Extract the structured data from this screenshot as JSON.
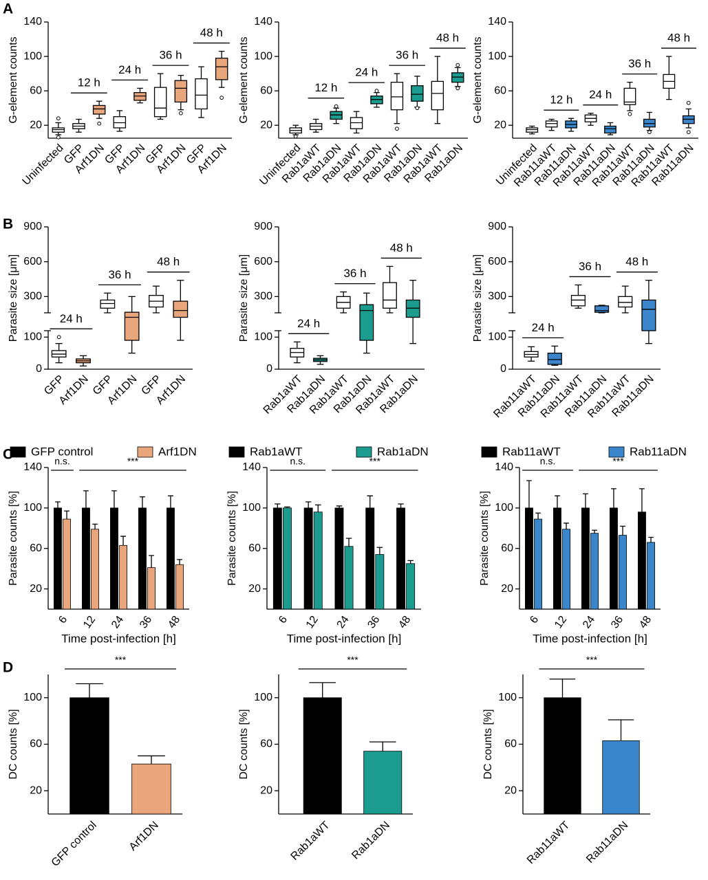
{
  "panels": [
    "A",
    "B",
    "C",
    "D"
  ],
  "chart_data": [
    {
      "type": "box",
      "ylabel": "G-element counts",
      "ylim": [
        5,
        140
      ],
      "yticks": [
        20,
        60,
        100,
        140
      ],
      "groups": [
        {
          "items": [
            {
              "name": "Uninfected",
              "color": "#ffffff",
              "min": 9,
              "q1": 12,
              "median": 15,
              "q3": 17,
              "max": 23,
              "outliers": [
                28,
                6
              ]
            }
          ]
        },
        {
          "label": "12 h",
          "items": [
            {
              "name": "GFP",
              "color": "#ffffff",
              "min": 12,
              "q1": 16,
              "median": 19,
              "q3": 22,
              "max": 27
            },
            {
              "name": "Arf1DN",
              "color": "#E9A57C",
              "min": 28,
              "q1": 33,
              "median": 39,
              "q3": 43,
              "max": 48,
              "outliers": [
                22
              ]
            }
          ]
        },
        {
          "label": "24 h",
          "items": [
            {
              "name": "GFP",
              "color": "#ffffff",
              "min": 13,
              "q1": 17,
              "median": 23,
              "q3": 30,
              "max": 37
            },
            {
              "name": "Arf1DN",
              "color": "#E9A57C",
              "min": 46,
              "q1": 49,
              "median": 54,
              "q3": 58,
              "max": 63
            }
          ]
        },
        {
          "label": "36 h",
          "items": [
            {
              "name": "GFP",
              "color": "#ffffff",
              "min": 27,
              "q1": 30,
              "median": 40,
              "q3": 64,
              "max": 80
            },
            {
              "name": "Arf1DN",
              "color": "#E9A57C",
              "min": 38,
              "q1": 47,
              "median": 63,
              "q3": 72,
              "max": 78,
              "outliers": [
                34
              ]
            }
          ]
        },
        {
          "label": "48 h",
          "items": [
            {
              "name": "GFP",
              "color": "#ffffff",
              "min": 29,
              "q1": 39,
              "median": 55,
              "q3": 74,
              "max": 88
            },
            {
              "name": "Arf1DN",
              "color": "#E9A57C",
              "min": 64,
              "q1": 73,
              "median": 88,
              "q3": 98,
              "max": 106,
              "outliers": [
                52
              ]
            }
          ]
        }
      ]
    },
    {
      "type": "box",
      "ylabel": "G-element counts",
      "ylim": [
        5,
        140
      ],
      "yticks": [
        20,
        60,
        100,
        140
      ],
      "groups": [
        {
          "items": [
            {
              "name": "Uninfected",
              "color": "#ffffff",
              "min": 9,
              "q1": 11,
              "median": 14,
              "q3": 17,
              "max": 20,
              "outliers": [
                7
              ]
            }
          ]
        },
        {
          "label": "12 h",
          "items": [
            {
              "name": "Rab1aWT",
              "color": "#ffffff",
              "min": 12,
              "q1": 15,
              "median": 19,
              "q3": 22,
              "max": 27
            },
            {
              "name": "Rab1aDN",
              "color": "#1B9C8E",
              "min": 22,
              "q1": 27,
              "median": 32,
              "q3": 36,
              "max": 40,
              "outliers": [
                42
              ]
            }
          ]
        },
        {
          "label": "24 h",
          "items": [
            {
              "name": "Rab1aWT",
              "color": "#ffffff",
              "min": 11,
              "q1": 16,
              "median": 23,
              "q3": 29,
              "max": 36
            },
            {
              "name": "Rab1aDN",
              "color": "#1B9C8E",
              "min": 41,
              "q1": 45,
              "median": 50,
              "q3": 54,
              "max": 58,
              "outliers": [
                60
              ]
            }
          ]
        },
        {
          "label": "36 h",
          "items": [
            {
              "name": "Rab1aWT",
              "color": "#ffffff",
              "min": 22,
              "q1": 38,
              "median": 53,
              "q3": 70,
              "max": 80,
              "outliers": [
                16
              ]
            },
            {
              "name": "Rab1aDN",
              "color": "#1B9C8E",
              "min": 41,
              "q1": 48,
              "median": 56,
              "q3": 66,
              "max": 77,
              "outliers": [
                40
              ]
            }
          ]
        },
        {
          "label": "48 h",
          "items": [
            {
              "name": "Rab1aWT",
              "color": "#ffffff",
              "min": 22,
              "q1": 38,
              "median": 57,
              "q3": 71,
              "max": 100
            },
            {
              "name": "Rab1aDN",
              "color": "#1B9C8E",
              "min": 65,
              "q1": 70,
              "median": 76,
              "q3": 81,
              "max": 87,
              "outliers": [
                63,
                90
              ]
            }
          ]
        }
      ]
    },
    {
      "type": "box",
      "ylabel": "G-element counts",
      "ylim": [
        5,
        140
      ],
      "yticks": [
        20,
        60,
        100,
        140
      ],
      "groups": [
        {
          "items": [
            {
              "name": "Uninfected",
              "color": "#ffffff",
              "min": 10,
              "q1": 12,
              "median": 15,
              "q3": 17,
              "max": 19
            }
          ]
        },
        {
          "label": "12 h",
          "items": [
            {
              "name": "Rab11aWT",
              "color": "#ffffff",
              "min": 14,
              "q1": 18,
              "median": 22,
              "q3": 25,
              "max": 27
            },
            {
              "name": "Rab11aDN",
              "color": "#3B86CB",
              "min": 13,
              "q1": 17,
              "median": 21,
              "q3": 25,
              "max": 28
            }
          ]
        },
        {
          "label": "24 h",
          "items": [
            {
              "name": "Rab11aWT",
              "color": "#ffffff",
              "min": 20,
              "q1": 24,
              "median": 28,
              "q3": 32,
              "max": 34
            },
            {
              "name": "Rab11aDN",
              "color": "#3B86CB",
              "min": 9,
              "q1": 11,
              "median": 16,
              "q3": 19,
              "max": 23
            }
          ]
        },
        {
          "label": "36 h",
          "items": [
            {
              "name": "Rab11aWT",
              "color": "#ffffff",
              "min": 37,
              "q1": 44,
              "median": 47,
              "q3": 63,
              "max": 70,
              "outliers": [
                33
              ]
            },
            {
              "name": "Rab11aDN",
              "color": "#3B86CB",
              "min": 14,
              "q1": 18,
              "median": 22,
              "q3": 27,
              "max": 35,
              "outliers": [
                12
              ]
            }
          ]
        },
        {
          "label": "48 h",
          "items": [
            {
              "name": "Rab11aWT",
              "color": "#ffffff",
              "min": 50,
              "q1": 63,
              "median": 71,
              "q3": 79,
              "max": 100
            },
            {
              "name": "Rab11aDN",
              "color": "#3B86CB",
              "min": 17,
              "q1": 22,
              "median": 27,
              "q3": 31,
              "max": 39,
              "outliers": [
                12,
                46
              ]
            }
          ]
        }
      ]
    },
    {
      "type": "box",
      "ylabel": "Parasite size [μm]",
      "ylim": [
        0,
        900
      ],
      "ybreak": [
        120,
        160
      ],
      "yticks": [
        0,
        100,
        300,
        600,
        900
      ],
      "groups": [
        {
          "label": "24 h",
          "items": [
            {
              "name": "GFP",
              "color": "#ffffff",
              "min": 20,
              "q1": 38,
              "median": 47,
              "q3": 58,
              "max": 80,
              "outliers": [
                100
              ]
            },
            {
              "name": "Arf1DN",
              "color": "#E9A57C",
              "min": 10,
              "q1": 20,
              "median": 26,
              "q3": 32,
              "max": 42
            }
          ]
        },
        {
          "label": "36 h",
          "items": [
            {
              "name": "GFP",
              "color": "#ffffff",
              "min": 160,
              "q1": 200,
              "median": 240,
              "q3": 270,
              "max": 330
            },
            {
              "name": "Arf1DN",
              "color": "#E9A57C",
              "min": 50,
              "q1": 90,
              "median": 150,
              "q3": 165,
              "max": 300
            }
          ]
        },
        {
          "label": "48 h",
          "items": [
            {
              "name": "GFP",
              "color": "#ffffff",
              "min": 160,
              "q1": 210,
              "median": 260,
              "q3": 310,
              "max": 390
            },
            {
              "name": "Arf1DN",
              "color": "#E9A57C",
              "min": 90,
              "q1": 150,
              "median": 180,
              "q3": 260,
              "max": 440
            }
          ]
        }
      ]
    },
    {
      "type": "box",
      "ylabel": "Parasite size [μm]",
      "ylim": [
        0,
        900
      ],
      "ybreak": [
        120,
        160
      ],
      "yticks": [
        0,
        100,
        300,
        600,
        900
      ],
      "groups": [
        {
          "label": "24 h",
          "items": [
            {
              "name": "Rab1aWT",
              "color": "#ffffff",
              "min": 20,
              "q1": 38,
              "median": 52,
              "q3": 65,
              "max": 85
            },
            {
              "name": "Rab1aDN",
              "color": "#1B9C8E",
              "min": 15,
              "q1": 24,
              "median": 29,
              "q3": 34,
              "max": 42
            }
          ]
        },
        {
          "label": "36 h",
          "items": [
            {
              "name": "Rab1aWT",
              "color": "#ffffff",
              "min": 160,
              "q1": 200,
              "median": 250,
              "q3": 300,
              "max": 340
            },
            {
              "name": "Rab1aDN",
              "color": "#1B9C8E",
              "min": 50,
              "q1": 90,
              "median": 180,
              "q3": 230,
              "max": 330
            }
          ]
        },
        {
          "label": "48 h",
          "items": [
            {
              "name": "Rab1aWT",
              "color": "#ffffff",
              "min": 160,
              "q1": 200,
              "median": 270,
              "q3": 420,
              "max": 560
            },
            {
              "name": "Rab1aDN",
              "color": "#1B9C8E",
              "min": 80,
              "q1": 150,
              "median": 200,
              "q3": 270,
              "max": 440
            }
          ]
        }
      ]
    },
    {
      "type": "box",
      "ylabel": "Parasite size [μm]",
      "ylim": [
        0,
        900
      ],
      "ybreak": [
        120,
        160
      ],
      "yticks": [
        0,
        100,
        300,
        600,
        900
      ],
      "groups": [
        {
          "label": "24 h",
          "items": [
            {
              "name": "Rab11aWT",
              "color": "#ffffff",
              "min": 25,
              "q1": 38,
              "median": 46,
              "q3": 55,
              "max": 70
            },
            {
              "name": "Rab11aDN",
              "color": "#3B86CB",
              "min": 12,
              "q1": 15,
              "median": 30,
              "q3": 50,
              "max": 72
            }
          ]
        },
        {
          "label": "36 h",
          "items": [
            {
              "name": "Rab11aWT",
              "color": "#ffffff",
              "min": 200,
              "q1": 220,
              "median": 270,
              "q3": 310,
              "max": 400
            },
            {
              "name": "Rab11aDN",
              "color": "#3B86CB",
              "min": 160,
              "q1": 165,
              "median": 180,
              "q3": 220,
              "max": 225
            }
          ]
        },
        {
          "label": "48 h",
          "items": [
            {
              "name": "Rab11aWT",
              "color": "#ffffff",
              "min": 160,
              "q1": 210,
              "median": 250,
              "q3": 300,
              "max": 390
            },
            {
              "name": "Rab11aDN",
              "color": "#3B86CB",
              "min": 80,
              "q1": 120,
              "median": 190,
              "q3": 270,
              "max": 440
            }
          ]
        }
      ]
    },
    {
      "type": "bar",
      "ylabel": "Parasite counts [%]",
      "xlabel": "Time post-infection [h]",
      "ylim": [
        0,
        140
      ],
      "yticks": [
        20,
        60,
        100,
        140
      ],
      "categories": [
        6,
        12,
        24,
        36,
        48
      ],
      "series": [
        {
          "name": "GFP control",
          "color": "#000000",
          "values": [
            100,
            100,
            100,
            100,
            100
          ],
          "errors": [
            6,
            17,
            17,
            11,
            12
          ]
        },
        {
          "name": "Arf1DN",
          "color": "#E9A57C",
          "values": [
            89,
            79,
            63,
            41,
            44
          ],
          "errors": [
            8,
            5,
            9,
            12,
            5
          ]
        }
      ],
      "annotations": [
        {
          "text": "n.s.",
          "from": 6,
          "to": 6
        },
        {
          "text": "***",
          "from": 12,
          "to": 48
        }
      ]
    },
    {
      "type": "bar",
      "ylabel": "Parasite counts [%]",
      "xlabel": "Time post-infection [h]",
      "ylim": [
        0,
        140
      ],
      "yticks": [
        20,
        60,
        100,
        140
      ],
      "categories": [
        6,
        12,
        24,
        36,
        48
      ],
      "series": [
        {
          "name": "Rab1aWT",
          "color": "#000000",
          "values": [
            100,
            100,
            100,
            100,
            100
          ],
          "errors": [
            4,
            6,
            2,
            12,
            4
          ]
        },
        {
          "name": "Rab1aDN",
          "color": "#1B9C8E",
          "values": [
            100,
            96,
            62,
            54,
            45
          ],
          "errors": [
            1,
            7,
            8,
            7,
            3
          ]
        }
      ],
      "annotations": [
        {
          "text": "n.s.",
          "from": 6,
          "to": 12
        },
        {
          "text": "***",
          "from": 24,
          "to": 48
        }
      ]
    },
    {
      "type": "bar",
      "ylabel": "Parasite counts [%]",
      "xlabel": "Time post-infection [h]",
      "ylim": [
        0,
        140
      ],
      "yticks": [
        20,
        60,
        100,
        140
      ],
      "categories": [
        6,
        12,
        24,
        36,
        48
      ],
      "series": [
        {
          "name": "Rab11aWT",
          "color": "#000000",
          "values": [
            100,
            100,
            100,
            100,
            96
          ],
          "errors": [
            27,
            12,
            14,
            19,
            23
          ]
        },
        {
          "name": "Rab11aDN",
          "color": "#3B86CB",
          "values": [
            89,
            79,
            75,
            73,
            66
          ],
          "errors": [
            6,
            6,
            3,
            9,
            5
          ]
        }
      ],
      "annotations": [
        {
          "text": "n.s.",
          "from": 6,
          "to": 12
        },
        {
          "text": "***",
          "from": 24,
          "to": 48
        }
      ]
    },
    {
      "type": "bar",
      "ylabel": "DC counts [%]",
      "ylim": [
        0,
        120
      ],
      "yticks": [
        20,
        60,
        100
      ],
      "categories": [
        "GFP control",
        "Arf1DN"
      ],
      "values": [
        100,
        43
      ],
      "errors": [
        12,
        7
      ],
      "colors": [
        "#000000",
        "#E9A57C"
      ],
      "annotations": [
        {
          "text": "***",
          "from": "GFP control",
          "to": "Arf1DN"
        }
      ]
    },
    {
      "type": "bar",
      "ylabel": "DC counts [%]",
      "ylim": [
        0,
        120
      ],
      "yticks": [
        20,
        60,
        100
      ],
      "categories": [
        "Rab1aWT",
        "Rab1aDN"
      ],
      "values": [
        100,
        54
      ],
      "errors": [
        13,
        8
      ],
      "colors": [
        "#000000",
        "#1B9C8E"
      ],
      "annotations": [
        {
          "text": "***",
          "from": "Rab1aWT",
          "to": "Rab1aDN"
        }
      ]
    },
    {
      "type": "bar",
      "ylabel": "DC counts [%]",
      "ylim": [
        0,
        120
      ],
      "yticks": [
        20,
        60,
        100
      ],
      "categories": [
        "Rab11aWT",
        "Rab11aDN"
      ],
      "values": [
        100,
        63
      ],
      "errors": [
        16,
        18
      ],
      "colors": [
        "#000000",
        "#3B86CB"
      ],
      "annotations": [
        {
          "text": "***",
          "from": "Rab11aWT",
          "to": "Rab11aDN"
        }
      ]
    }
  ]
}
